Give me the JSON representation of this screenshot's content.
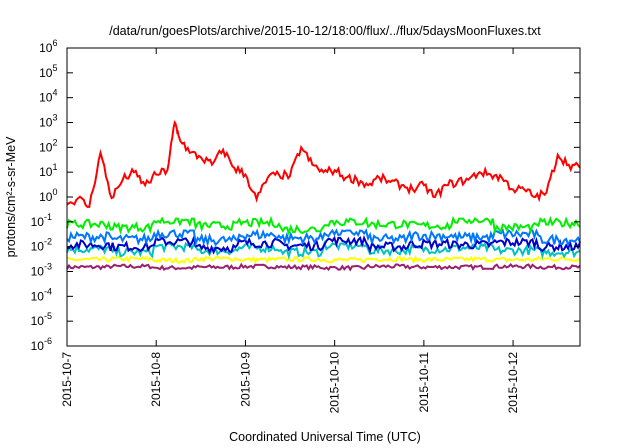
{
  "chart_data": {
    "type": "line",
    "title": "/data/run/goesPlots/archive/2015-10-12/18:00/flux/../flux/5daysMoonFluxes.txt",
    "xlabel": "Coordinated Universal Time (UTC)",
    "ylabel": "protons/cm²-s-sr-MeV",
    "ylim": [
      1e-06,
      1000000.0
    ],
    "yscale": "log",
    "xlim": [
      "2015-10-07",
      "2015-10-12 18:00"
    ],
    "x_tick_labels": [
      "2015-10-7",
      "2015-10-8",
      "2015-10-9",
      "2015-10-10",
      "2015-10-11",
      "2015-10-12"
    ],
    "y_tick_labels": [
      {
        "base": "10",
        "exp": "-6"
      },
      {
        "base": "10",
        "exp": "-5"
      },
      {
        "base": "10",
        "exp": "-4"
      },
      {
        "base": "10",
        "exp": "-3"
      },
      {
        "base": "10",
        "exp": "-2"
      },
      {
        "base": "10",
        "exp": "-1"
      },
      {
        "base": "10",
        "exp": "0"
      },
      {
        "base": "10",
        "exp": "1"
      },
      {
        "base": "10",
        "exp": "2"
      },
      {
        "base": "10",
        "exp": "3"
      },
      {
        "base": "10",
        "exp": "4"
      },
      {
        "base": "10",
        "exp": "5"
      },
      {
        "base": "10",
        "exp": "6"
      }
    ],
    "grid": false,
    "legend": "none",
    "series": [
      {
        "color": "#ff0000",
        "x": [
          "2015-10-07 00:00",
          "2015-10-07 03:00",
          "2015-10-07 06:00",
          "2015-10-07 09:00",
          "2015-10-07 12:00",
          "2015-10-07 15:00",
          "2015-10-07 18:00",
          "2015-10-07 21:00",
          "2015-10-08 00:00",
          "2015-10-08 03:00",
          "2015-10-08 05:00",
          "2015-10-08 06:00",
          "2015-10-08 09:00",
          "2015-10-08 12:00",
          "2015-10-08 15:00",
          "2015-10-08 18:00",
          "2015-10-08 21:00",
          "2015-10-09 00:00",
          "2015-10-09 03:00",
          "2015-10-09 06:00",
          "2015-10-09 09:00",
          "2015-10-09 12:00",
          "2015-10-09 15:00",
          "2015-10-09 18:00",
          "2015-10-09 21:00",
          "2015-10-10 00:00",
          "2015-10-10 03:00",
          "2015-10-10 06:00",
          "2015-10-10 09:00",
          "2015-10-10 12:00",
          "2015-10-10 15:00",
          "2015-10-10 18:00",
          "2015-10-10 21:00",
          "2015-10-11 00:00",
          "2015-10-11 03:00",
          "2015-10-11 06:00",
          "2015-10-11 09:00",
          "2015-10-11 12:00",
          "2015-10-11 15:00",
          "2015-10-11 18:00",
          "2015-10-11 21:00",
          "2015-10-12 00:00",
          "2015-10-12 03:00",
          "2015-10-12 06:00",
          "2015-10-12 09:00",
          "2015-10-12 12:00",
          "2015-10-12 15:00",
          "2015-10-12 18:00"
        ],
        "values": [
          0.5,
          0.9,
          0.4,
          60,
          0.9,
          5,
          10,
          3,
          8,
          12,
          1000,
          300,
          60,
          40,
          20,
          80,
          15,
          8,
          0.8,
          6,
          8,
          7,
          100,
          20,
          10,
          12,
          6,
          5,
          3,
          6,
          4,
          3,
          2,
          3,
          1,
          3,
          4,
          5,
          10,
          8,
          6,
          2,
          2,
          1,
          1.5,
          50,
          20,
          15
        ]
      },
      {
        "color": "#00ee00",
        "band": [
          0.05,
          0.12
        ],
        "values": [
          0.08,
          0.06,
          0.11,
          0.07,
          0.09,
          0.05,
          0.1,
          0.08,
          0.07,
          0.12,
          0.06,
          0.09
        ]
      },
      {
        "color": "#0077ff",
        "band": [
          0.015,
          0.04
        ],
        "values": [
          0.025,
          0.02,
          0.035,
          0.018,
          0.03,
          0.022,
          0.038,
          0.02,
          0.028,
          0.024,
          0.032,
          0.019
        ]
      },
      {
        "color": "#0000cc",
        "band": [
          0.008,
          0.02
        ],
        "values": [
          0.012,
          0.01,
          0.016,
          0.009,
          0.014,
          0.011,
          0.018,
          0.01,
          0.013,
          0.012,
          0.015,
          0.01
        ]
      },
      {
        "color": "#00c0c0",
        "band": [
          0.005,
          0.012
        ],
        "values": [
          0.008,
          0.006,
          0.01,
          0.007,
          0.009,
          0.006,
          0.011,
          0.007,
          0.008,
          0.009,
          0.007,
          0.006
        ]
      },
      {
        "color": "#ffff00",
        "band": [
          0.0025,
          0.004
        ],
        "values": [
          0.003,
          0.0032,
          0.0028,
          0.0033,
          0.003,
          0.0031,
          0.0029,
          0.0032,
          0.003,
          0.0031,
          0.003,
          0.0032
        ]
      },
      {
        "color": "#9b1f6e",
        "band": [
          0.0012,
          0.0018
        ],
        "values": [
          0.0015,
          0.0016,
          0.0014,
          0.0015,
          0.0016,
          0.0015,
          0.0014,
          0.0016,
          0.0015,
          0.0015,
          0.0016,
          0.0015
        ]
      }
    ]
  }
}
